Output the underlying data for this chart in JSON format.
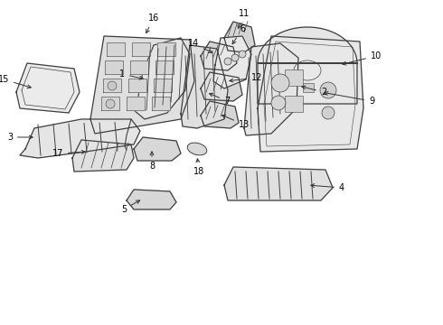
{
  "background_color": "#ffffff",
  "line_color": "#404040",
  "label_color": "#000000",
  "fig_width": 4.9,
  "fig_height": 3.6,
  "dpi": 100,
  "label_fontsize": 7.0
}
